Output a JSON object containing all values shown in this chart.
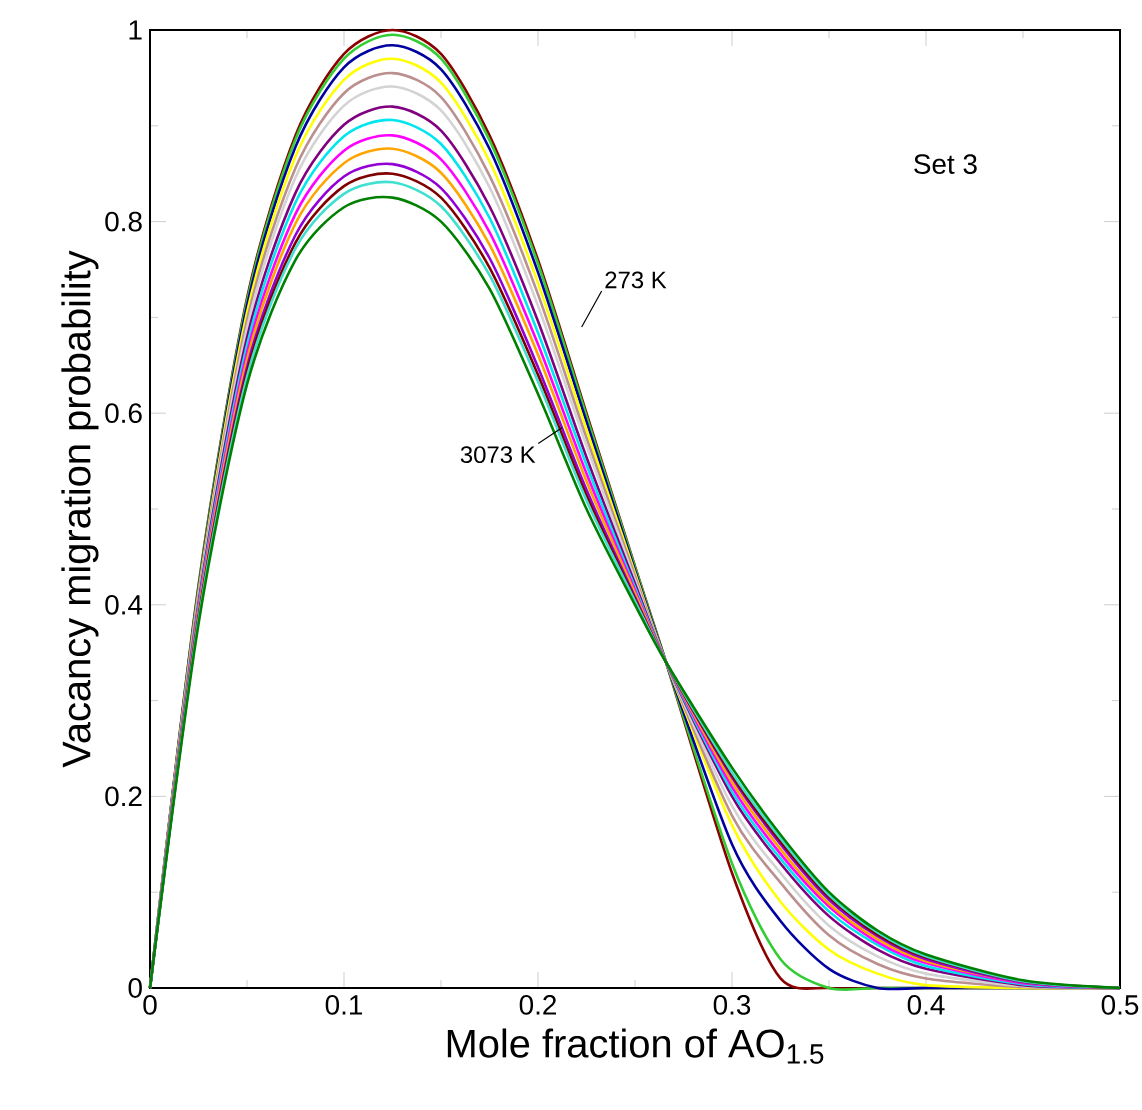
{
  "chart_data": {
    "type": "line",
    "xlabel": "Mole fraction of AO$_{1.5}$",
    "ylabel": "Vacancy migration probability",
    "x": [
      0,
      0.025,
      0.05,
      0.075,
      0.1,
      0.125,
      0.15,
      0.175,
      0.2,
      0.225,
      0.25,
      0.266,
      0.3,
      0.325,
      0.35,
      0.375,
      0.4,
      0.45,
      0.5
    ],
    "xlim": [
      0,
      0.5
    ],
    "ylim": [
      0,
      1
    ],
    "xticks": [
      0,
      0.1,
      0.2,
      0.3,
      0.4,
      0.5
    ],
    "yticks": [
      0,
      0.2,
      0.4,
      0.6,
      0.8,
      1
    ],
    "grid": false,
    "marker": "none",
    "line_style": "solid",
    "series": [
      {
        "color": "#8b0000",
        "values": [
          0,
          0.42,
          0.72,
          0.89,
          0.975,
          1.0,
          0.975,
          0.89,
          0.76,
          0.6,
          0.44,
          0.34,
          0.12,
          0.01,
          0,
          0,
          0,
          0,
          0
        ]
      },
      {
        "color": "#32cd32",
        "values": [
          0,
          0.419,
          0.717,
          0.886,
          0.97,
          0.995,
          0.97,
          0.885,
          0.756,
          0.597,
          0.439,
          0.34,
          0.13,
          0.03,
          0,
          0,
          0,
          0,
          0
        ]
      },
      {
        "color": "#0000a0",
        "values": [
          0,
          0.416,
          0.712,
          0.878,
          0.961,
          0.984,
          0.959,
          0.876,
          0.747,
          0.591,
          0.436,
          0.34,
          0.15,
          0.07,
          0.02,
          0,
          0,
          0,
          0
        ]
      },
      {
        "color": "#ffff00",
        "values": [
          0,
          0.413,
          0.705,
          0.868,
          0.948,
          0.97,
          0.945,
          0.863,
          0.736,
          0.583,
          0.433,
          0.34,
          0.17,
          0.09,
          0.04,
          0.015,
          0.003,
          0,
          0
        ]
      },
      {
        "color": "#bc8f8f",
        "values": [
          0,
          0.41,
          0.697,
          0.856,
          0.934,
          0.955,
          0.93,
          0.848,
          0.724,
          0.574,
          0.43,
          0.34,
          0.18,
          0.11,
          0.055,
          0.025,
          0.01,
          0.001,
          0
        ]
      },
      {
        "color": "#d3d3d3",
        "values": [
          0,
          0.406,
          0.689,
          0.846,
          0.921,
          0.941,
          0.916,
          0.836,
          0.712,
          0.566,
          0.426,
          0.34,
          0.19,
          0.12,
          0.065,
          0.033,
          0.015,
          0.002,
          0
        ]
      },
      {
        "color": "#800080",
        "values": [
          0,
          0.402,
          0.679,
          0.83,
          0.901,
          0.92,
          0.895,
          0.816,
          0.696,
          0.554,
          0.422,
          0.34,
          0.2,
          0.13,
          0.075,
          0.04,
          0.02,
          0.003,
          0
        ]
      },
      {
        "color": "#00e5ee",
        "values": [
          0,
          0.398,
          0.671,
          0.82,
          0.889,
          0.906,
          0.881,
          0.804,
          0.684,
          0.546,
          0.418,
          0.34,
          0.205,
          0.135,
          0.08,
          0.045,
          0.023,
          0.004,
          0
        ]
      },
      {
        "color": "#ff00ff",
        "values": [
          0,
          0.395,
          0.663,
          0.808,
          0.874,
          0.89,
          0.865,
          0.789,
          0.672,
          0.537,
          0.415,
          0.34,
          0.21,
          0.14,
          0.085,
          0.048,
          0.026,
          0.005,
          0
        ]
      },
      {
        "color": "#ffa500",
        "values": [
          0,
          0.392,
          0.656,
          0.798,
          0.861,
          0.876,
          0.851,
          0.776,
          0.661,
          0.529,
          0.412,
          0.34,
          0.215,
          0.145,
          0.088,
          0.051,
          0.028,
          0.006,
          0
        ]
      },
      {
        "color": "#9400d3",
        "values": [
          0,
          0.388,
          0.648,
          0.786,
          0.847,
          0.86,
          0.835,
          0.762,
          0.648,
          0.52,
          0.408,
          0.34,
          0.22,
          0.15,
          0.092,
          0.054,
          0.03,
          0.006,
          0
        ]
      },
      {
        "color": "#800000",
        "values": [
          0,
          0.386,
          0.643,
          0.778,
          0.837,
          0.85,
          0.825,
          0.752,
          0.64,
          0.514,
          0.406,
          0.34,
          0.222,
          0.153,
          0.095,
          0.056,
          0.032,
          0.007,
          0
        ]
      },
      {
        "color": "#40e0d0",
        "values": [
          0,
          0.384,
          0.638,
          0.772,
          0.829,
          0.841,
          0.816,
          0.744,
          0.633,
          0.509,
          0.404,
          0.34,
          0.225,
          0.156,
          0.097,
          0.058,
          0.033,
          0.007,
          0
        ]
      },
      {
        "color": "#008000",
        "values": [
          0,
          0.38,
          0.63,
          0.76,
          0.815,
          0.825,
          0.8,
          0.73,
          0.62,
          0.5,
          0.4,
          0.34,
          0.23,
          0.16,
          0.1,
          0.06,
          0.035,
          0.008,
          0
        ]
      }
    ],
    "annotations": [
      "273 K",
      "3073 K",
      "Set 3"
    ]
  }
}
